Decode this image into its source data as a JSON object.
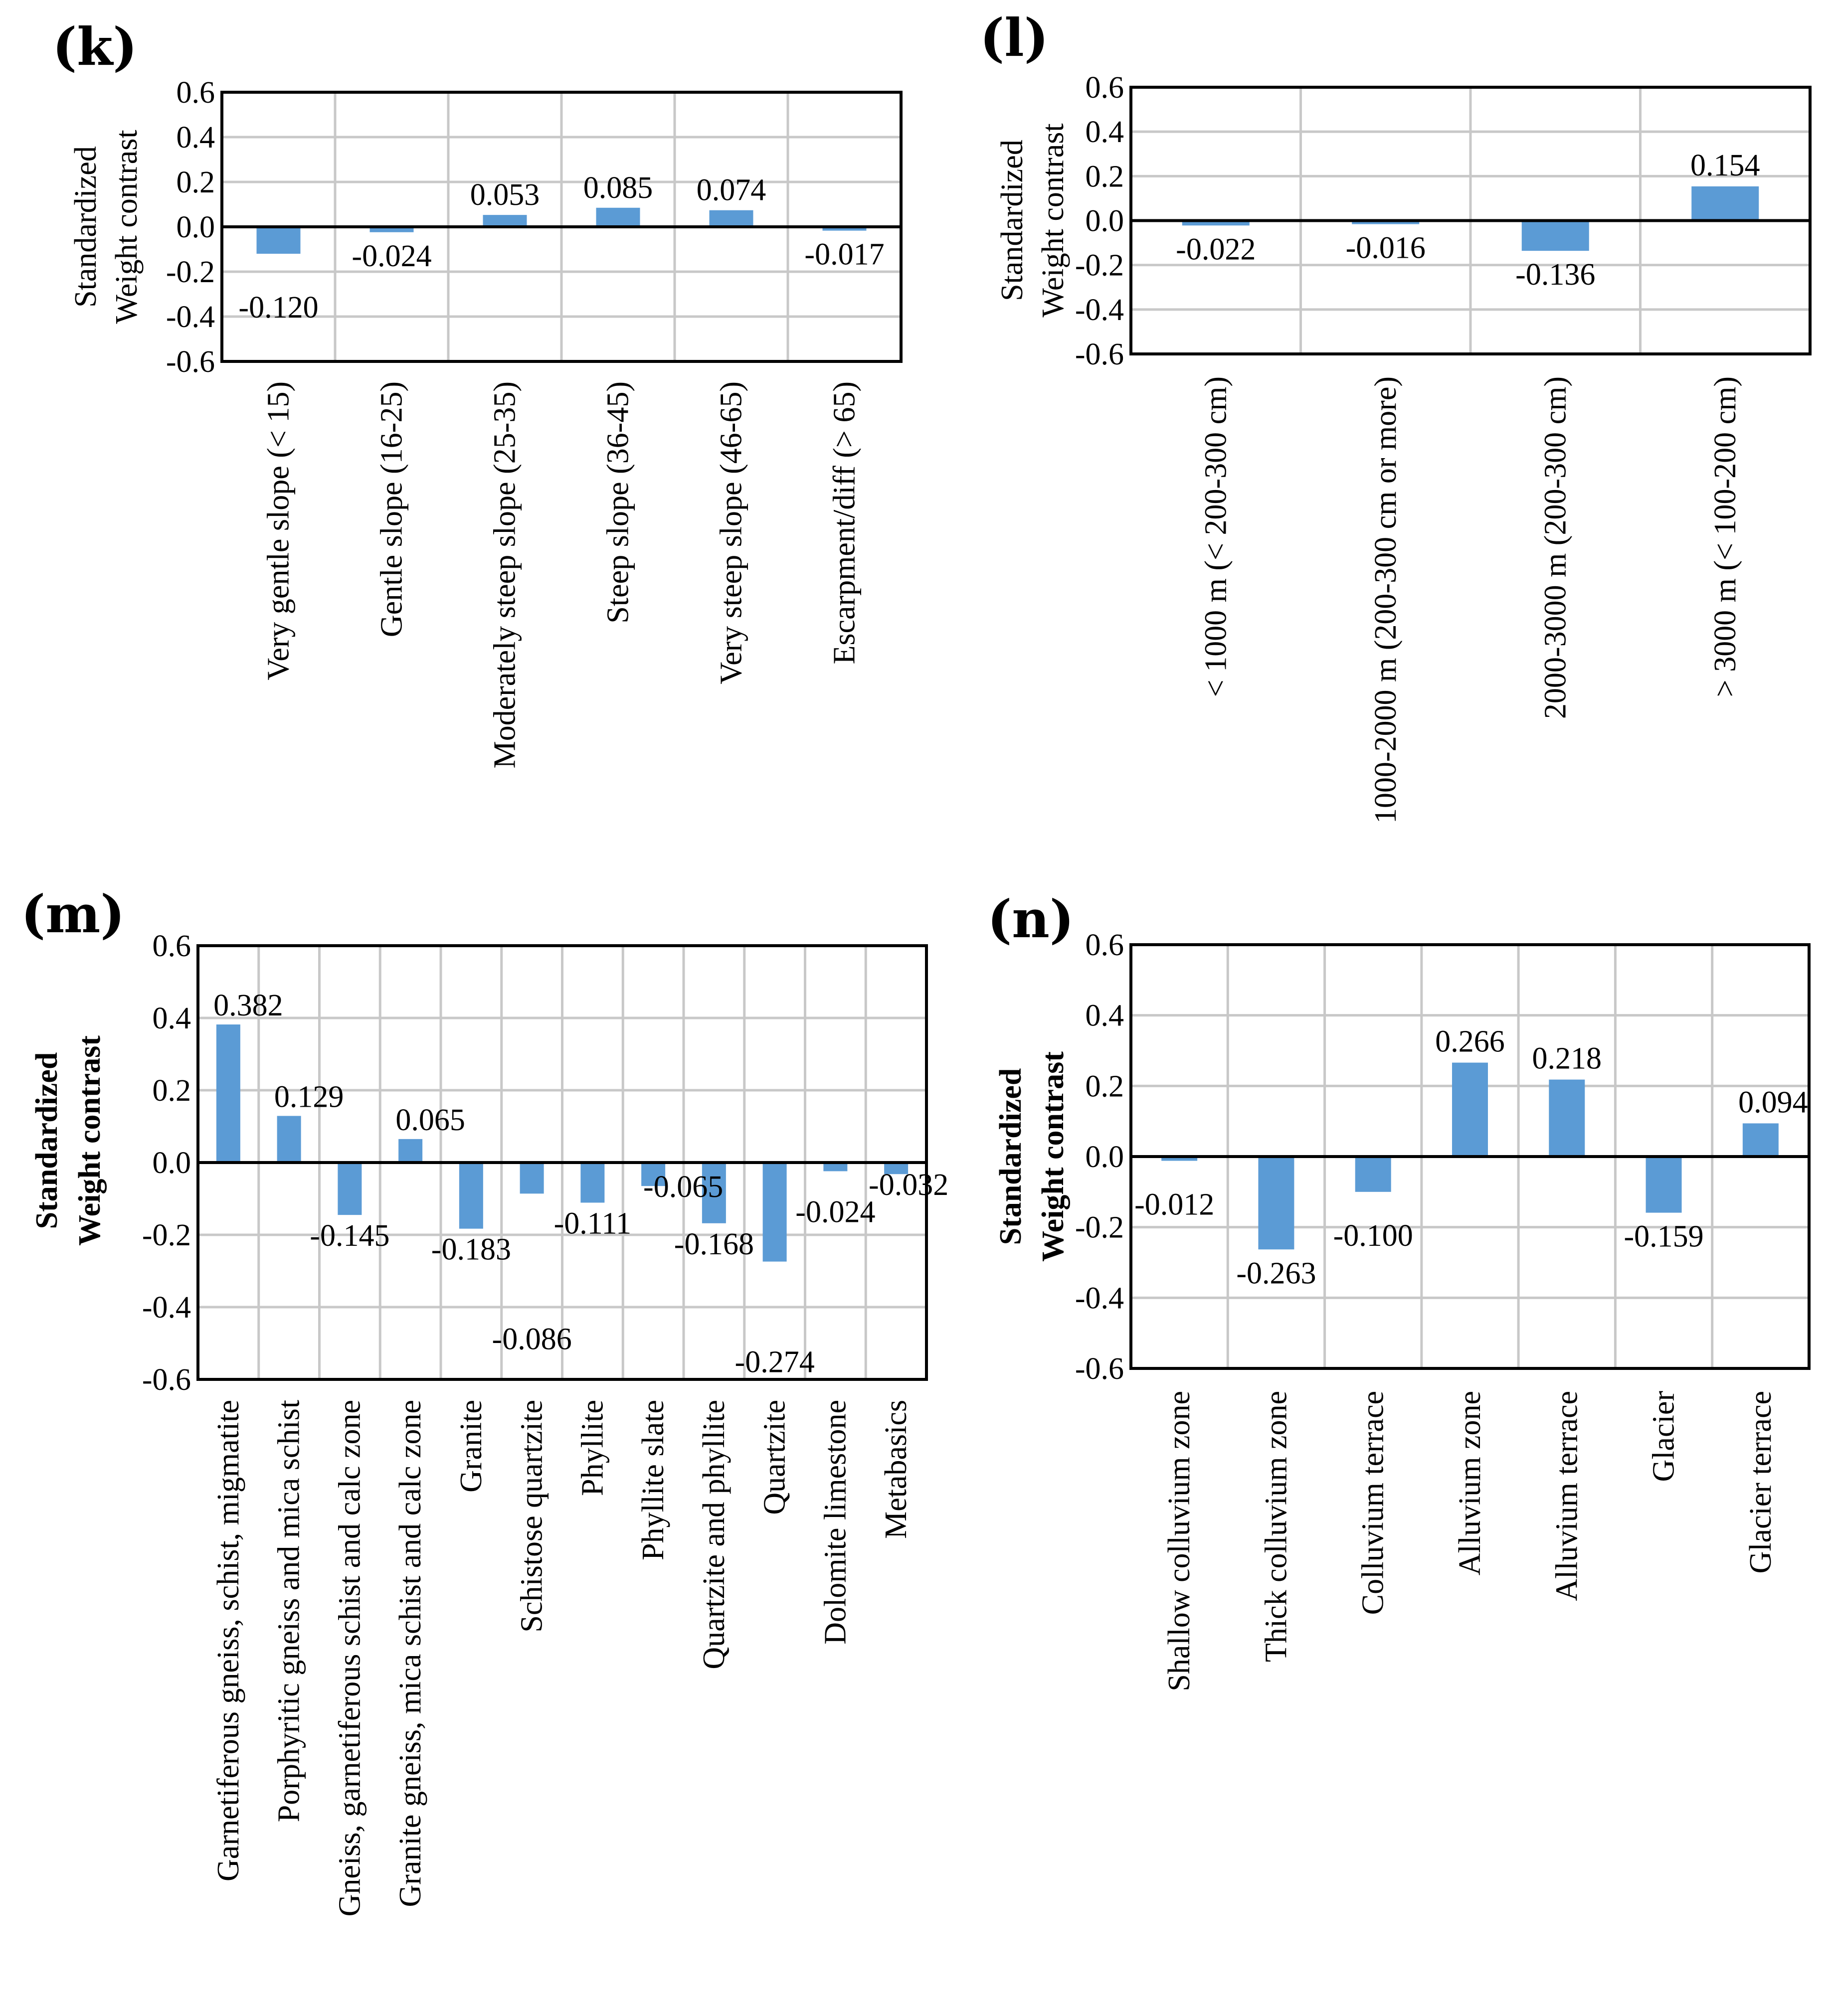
{
  "chart_data": [
    {
      "panel": "(k)",
      "type": "bar",
      "ylabel": [
        "Standardized",
        "Weight contrast"
      ],
      "ylim": [
        -0.6,
        0.6
      ],
      "yticks": [
        "0.6",
        "0.4",
        "0.2",
        "0.0",
        "-0.2",
        "-0.4",
        "-0.6"
      ],
      "categories": [
        "Very gentle slope (< 15)",
        "Gentle slope (16-25)",
        "Moderately steep slope (25-35)",
        "Steep slope (36-45)",
        "Very steep slope (46-65)",
        "Escarpment/diff (> 65)"
      ],
      "values": [
        -0.12,
        -0.024,
        0.053,
        0.085,
        0.074,
        -0.017
      ],
      "labels": [
        "-0.120",
        "-0.024",
        "0.053",
        "0.085",
        "0.074",
        "-0.017"
      ]
    },
    {
      "panel": "(l)",
      "type": "bar",
      "ylabel": [
        "Standardized",
        "Weight contrast"
      ],
      "ylim": [
        -0.6,
        0.6
      ],
      "yticks": [
        "0.6",
        "0.4",
        "0.2",
        "0.0",
        "-0.2",
        "-0.4",
        "-0.6"
      ],
      "categories": [
        "< 1000 m (< 200-300 cm)",
        "1000-2000 m  (200-300 cm or more)",
        "2000-3000 m  (200-300 cm)",
        "> 3000 m  (< 100-200 cm)"
      ],
      "values": [
        -0.022,
        -0.016,
        -0.136,
        0.154
      ],
      "labels": [
        "-0.022",
        "-0.016",
        "-0.136",
        "0.154"
      ]
    },
    {
      "panel": "(m)",
      "type": "bar",
      "ylabel": [
        "Standardized",
        "Weight contrast"
      ],
      "ylim": [
        -0.6,
        0.6
      ],
      "yticks": [
        "0.6",
        "0.4",
        "0.2",
        "0.0",
        "-0.2",
        "-0.4",
        "-0.6"
      ],
      "categories": [
        "Garnetiferous gneiss, schist, migmatite",
        "Porphyritic gneiss and mica schist",
        "Gneiss, garnetiferous schist and calc zone",
        "Granite gneiss, mica schist and calc zone",
        "Granite",
        "Schistose quartzite",
        "Phyllite",
        "Phyllite slate",
        "Quartzite and phyllite",
        "Quartzite",
        "Dolomite limestone",
        "Metabasics"
      ],
      "values": [
        0.382,
        0.129,
        -0.145,
        0.065,
        -0.183,
        -0.086,
        -0.111,
        -0.065,
        -0.168,
        -0.274,
        -0.024,
        -0.032
      ],
      "labels": [
        "0.382",
        "0.129",
        "-0.145",
        "0.065",
        "-0.183",
        "-0.086",
        "-0.111",
        "-0.065",
        "-0.168",
        "-0.274",
        "-0.024",
        "-0.032"
      ]
    },
    {
      "panel": "(n)",
      "type": "bar",
      "ylabel": [
        "Standardized",
        "Weight contrast"
      ],
      "ylim": [
        -0.6,
        0.6
      ],
      "yticks": [
        "0.6",
        "0.4",
        "0.2",
        "0.0",
        "-0.2",
        "-0.4",
        "-0.6"
      ],
      "categories": [
        "Shallow colluvium zone",
        "Thick colluvium zone",
        "Colluvium terrace",
        "Alluvium zone",
        "Alluvium terrace",
        "Glacier",
        "Glacier terrace"
      ],
      "values": [
        -0.012,
        -0.263,
        -0.1,
        0.266,
        0.218,
        -0.159,
        0.094
      ],
      "labels": [
        "-0.012",
        "-0.263",
        "-0.100",
        "0.266",
        "0.218",
        "-0.159",
        "0.094"
      ]
    }
  ]
}
